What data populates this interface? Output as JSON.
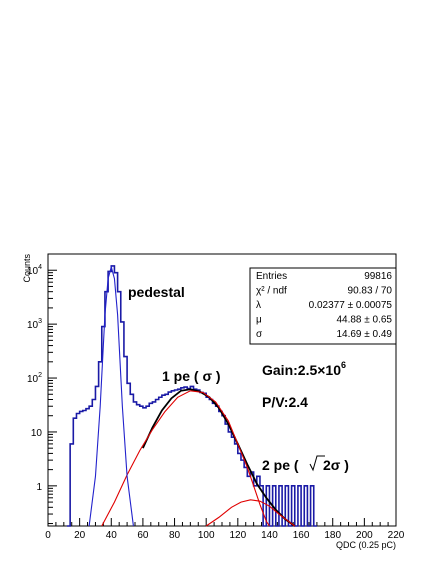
{
  "chart_data": {
    "type": "line",
    "xlabel": "QDC (0.25 pC)",
    "ylabel": "Counts",
    "xlim": [
      0,
      220
    ],
    "ylim": [
      0.18,
      20000
    ],
    "yscale": "log",
    "x_ticks": [
      "0",
      "20",
      "40",
      "60",
      "80",
      "100",
      "120",
      "140",
      "160",
      "180",
      "200",
      "220"
    ],
    "y_ticks": [
      {
        "value": 1,
        "label": "1"
      },
      {
        "value": 10,
        "label": "10"
      },
      {
        "value": 100,
        "label": "10",
        "exp": "2"
      },
      {
        "value": 1000,
        "label": "10",
        "exp": "3"
      },
      {
        "value": 10000,
        "label": "10",
        "exp": "4"
      }
    ],
    "stats": {
      "rows": [
        {
          "label": "Entries",
          "value": "99816"
        },
        {
          "label": "χ² / ndf",
          "value": "90.83 / 70"
        },
        {
          "label": "λ",
          "value": "0.02377 ± 0.00075"
        },
        {
          "label": "μ",
          "value": "44.88 ± 0.65"
        },
        {
          "label": "σ",
          "value": "14.69 ± 0.49"
        }
      ]
    },
    "annotations": {
      "pedestal": "pedestal",
      "one_pe": "1 pe ( σ )",
      "gain": "Gain:2.5×10",
      "gain_exp": "6",
      "pv": "P/V:2.4",
      "two_pe_prefix": "2 pe (",
      "two_pe_suffix": "2σ )"
    },
    "series": [
      {
        "name": "",
        "style": "histogram",
        "color": "#1a1aa6",
        "points": [
          [
            12,
            0.18
          ],
          [
            14,
            6
          ],
          [
            16,
            18
          ],
          [
            18,
            22
          ],
          [
            20,
            24
          ],
          [
            22,
            25
          ],
          [
            24,
            27
          ],
          [
            26,
            30
          ],
          [
            28,
            40
          ],
          [
            30,
            70
          ],
          [
            32,
            200
          ],
          [
            34,
            900
          ],
          [
            36,
            4000
          ],
          [
            38,
            9500
          ],
          [
            40,
            12000
          ],
          [
            42,
            9000
          ],
          [
            44,
            4000
          ],
          [
            46,
            1100
          ],
          [
            48,
            250
          ],
          [
            50,
            80
          ],
          [
            52,
            50
          ],
          [
            54,
            36
          ],
          [
            56,
            32
          ],
          [
            58,
            30
          ],
          [
            60,
            28
          ],
          [
            62,
            30
          ],
          [
            64,
            34
          ],
          [
            66,
            36
          ],
          [
            68,
            40
          ],
          [
            70,
            44
          ],
          [
            72,
            48
          ],
          [
            74,
            50
          ],
          [
            76,
            55
          ],
          [
            78,
            58
          ],
          [
            80,
            60
          ],
          [
            82,
            62
          ],
          [
            84,
            66
          ],
          [
            86,
            68
          ],
          [
            88,
            64
          ],
          [
            90,
            70
          ],
          [
            92,
            62
          ],
          [
            94,
            60
          ],
          [
            96,
            54
          ],
          [
            98,
            52
          ],
          [
            100,
            44
          ],
          [
            102,
            40
          ],
          [
            104,
            34
          ],
          [
            106,
            30
          ],
          [
            108,
            24
          ],
          [
            110,
            20
          ],
          [
            112,
            14
          ],
          [
            114,
            10
          ],
          [
            116,
            8
          ],
          [
            118,
            6
          ],
          [
            120,
            4
          ],
          [
            122,
            3
          ],
          [
            124,
            2.2
          ],
          [
            126,
            1.5
          ],
          [
            128,
            1.8
          ],
          [
            130,
            1.0
          ],
          [
            132,
            1.5
          ],
          [
            134,
            1.0
          ],
          [
            136,
            0.18
          ],
          [
            138,
            1.0
          ],
          [
            140,
            0.18
          ],
          [
            142,
            1.0
          ],
          [
            144,
            0.18
          ],
          [
            146,
            1.0
          ],
          [
            148,
            0.18
          ],
          [
            150,
            1.0
          ],
          [
            152,
            0.18
          ],
          [
            154,
            1.0
          ],
          [
            156,
            0.18
          ],
          [
            158,
            1.0
          ],
          [
            160,
            0.18
          ],
          [
            162,
            1.0
          ],
          [
            164,
            0.18
          ],
          [
            166,
            1.0
          ],
          [
            168,
            0.18
          ]
        ]
      },
      {
        "name": "",
        "style": "line",
        "color": "#000000",
        "points": [
          [
            60,
            5
          ],
          [
            66,
            12
          ],
          [
            72,
            25
          ],
          [
            78,
            42
          ],
          [
            84,
            58
          ],
          [
            90,
            62
          ],
          [
            96,
            56
          ],
          [
            102,
            44
          ],
          [
            108,
            28
          ],
          [
            114,
            14
          ],
          [
            120,
            6
          ],
          [
            126,
            2.5
          ],
          [
            132,
            1.1
          ],
          [
            138,
            0.6
          ],
          [
            144,
            0.36
          ],
          [
            150,
            0.24
          ],
          [
            156,
            0.18
          ]
        ]
      },
      {
        "name": "",
        "style": "line",
        "color": "#e00000",
        "points": [
          [
            34,
            0.18
          ],
          [
            42,
            0.5
          ],
          [
            50,
            1.6
          ],
          [
            58,
            4.5
          ],
          [
            66,
            11
          ],
          [
            74,
            24
          ],
          [
            82,
            44
          ],
          [
            90,
            58
          ],
          [
            98,
            54
          ],
          [
            106,
            36
          ],
          [
            114,
            16
          ],
          [
            120,
            6
          ],
          [
            126,
            2.2
          ],
          [
            130,
            1.0
          ],
          [
            134,
            0.45
          ],
          [
            138,
            0.22
          ],
          [
            140,
            0.18
          ]
        ]
      },
      {
        "name": "",
        "style": "line",
        "color": "#e00000",
        "points": [
          [
            100,
            0.18
          ],
          [
            108,
            0.26
          ],
          [
            116,
            0.4
          ],
          [
            122,
            0.5
          ],
          [
            128,
            0.55
          ],
          [
            134,
            0.52
          ],
          [
            140,
            0.42
          ],
          [
            146,
            0.3
          ],
          [
            152,
            0.22
          ],
          [
            156,
            0.18
          ]
        ]
      },
      {
        "name": "",
        "style": "line",
        "color": "#2222cc",
        "points": [
          [
            26,
            0.18
          ],
          [
            30,
            1.5
          ],
          [
            33,
            30
          ],
          [
            36,
            1500
          ],
          [
            38,
            7000
          ],
          [
            40,
            11500
          ],
          [
            42,
            7000
          ],
          [
            44,
            1500
          ],
          [
            47,
            30
          ],
          [
            50,
            1.5
          ],
          [
            54,
            0.18
          ]
        ]
      }
    ]
  }
}
